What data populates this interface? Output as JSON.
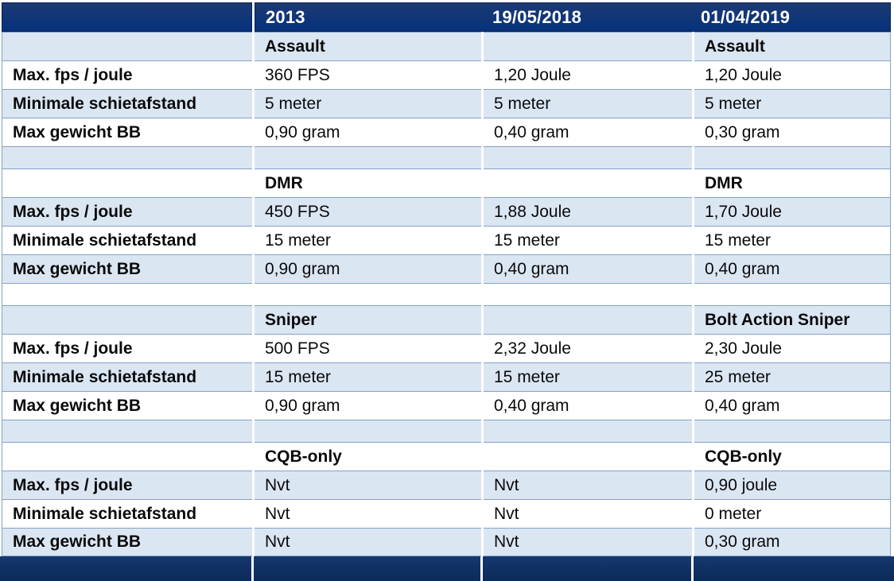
{
  "theme": {
    "header_navy_top": "#1c3a71",
    "header_navy_bottom": "#06327e",
    "footer_navy_top": "#15386e",
    "footer_navy_bottom": "#0c2a5a",
    "row_light_blue": "#dbe6f3",
    "row_white": "#ffffff",
    "grid_border": "#84a2c4",
    "header_text": "#ffffff",
    "body_text": "#0a0a0a"
  },
  "header": {
    "labels": [
      "2013",
      "19/05/2018",
      "01/04/2019"
    ]
  },
  "row_labels": [
    "Max. fps / joule",
    "Minimale schietafstand",
    "Max gewicht BB"
  ],
  "sections": [
    {
      "headers": [
        "Assault",
        "",
        "Assault"
      ],
      "rows": [
        [
          "360 FPS",
          "1,20 Joule",
          "1,20 Joule"
        ],
        [
          "5 meter",
          "5 meter",
          "5 meter"
        ],
        [
          "0,90 gram",
          "0,40 gram",
          "0,30 gram"
        ]
      ]
    },
    {
      "headers": [
        "DMR",
        "",
        "DMR"
      ],
      "rows": [
        [
          "450 FPS",
          "1,88 Joule",
          "1,70 Joule"
        ],
        [
          "15 meter",
          "15 meter",
          "15 meter"
        ],
        [
          "0,90 gram",
          "0,40 gram",
          "0,40 gram"
        ]
      ]
    },
    {
      "headers": [
        "Sniper",
        "",
        "Bolt Action Sniper"
      ],
      "rows": [
        [
          "500 FPS",
          "2,32 Joule",
          "2,30 Joule"
        ],
        [
          "15 meter",
          "15 meter",
          "25 meter"
        ],
        [
          "0,90 gram",
          "0,40 gram",
          "0,40 gram"
        ]
      ]
    },
    {
      "headers": [
        "CQB-only",
        "",
        "CQB-only"
      ],
      "rows": [
        [
          "Nvt",
          "Nvt",
          "0,90 joule"
        ],
        [
          "Nvt",
          "Nvt",
          "0 meter"
        ],
        [
          "Nvt",
          "Nvt",
          "0,30 gram"
        ]
      ]
    }
  ]
}
